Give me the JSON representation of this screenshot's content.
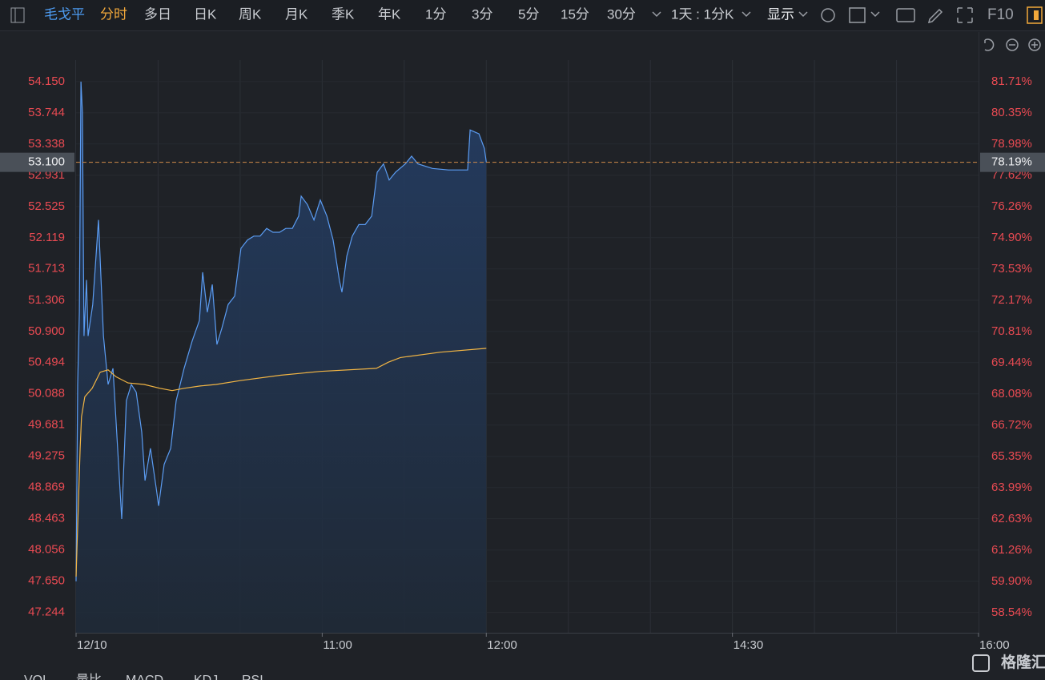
{
  "toolbar": {
    "symbol": "毛戈平",
    "items": [
      "分时",
      "多日",
      "日K",
      "周K",
      "月K",
      "季K",
      "年K",
      "1分",
      "3分",
      "5分",
      "15分",
      "30分"
    ],
    "ratio": "1天 : 1分K",
    "display": "显示",
    "f10": "F10"
  },
  "tabs": [
    "VOL",
    "量比",
    "MACD",
    "KDJ",
    "RSI"
  ],
  "logo": "格隆汇",
  "chart_data": {
    "type": "line",
    "x": [
      0,
      0.6,
      1.2,
      1.8,
      2.3,
      2.9,
      3.8,
      4.4,
      6.1,
      8.2,
      10,
      11.7,
      13.5,
      15.2,
      16.7,
      18.4,
      20.2,
      22,
      24,
      25.2,
      27.2,
      29.3,
      30.2,
      32.2,
      34.6,
      36.6,
      39.5,
      42.5,
      45.1,
      46.3,
      48,
      49.8,
      51.5,
      53.3,
      55.6,
      58,
      60.3,
      62.7,
      65,
      67.3,
      69.7,
      72,
      74.4,
      76.7,
      79.1,
      81.4,
      82.3,
      84.6,
      87,
      89.3,
      91.7,
      94,
      96.3,
      97.2,
      99,
      101,
      103.4,
      105.7,
      108.1,
      110.1,
      112.4,
      114.5,
      116.8,
      120.4,
      122.7,
      125,
      130.3,
      136.2,
      142,
      143.2,
      144.1,
      147.3,
      149.3,
      150
    ],
    "series": [
      {
        "color": "#5b9cf2",
        "values": [
          47.65,
          50.21,
          51.15,
          54.15,
          53.75,
          50.84,
          51.57,
          50.84,
          51.25,
          52.35,
          50.84,
          50.21,
          50.42,
          49.38,
          48.46,
          50.0,
          50.21,
          50.11,
          49.59,
          48.96,
          49.38,
          48.86,
          48.63,
          49.17,
          49.38,
          50.0,
          50.42,
          50.78,
          51.04,
          51.67,
          51.15,
          51.51,
          50.73,
          50.94,
          51.25,
          51.36,
          51.98,
          52.09,
          52.14,
          52.14,
          52.24,
          52.19,
          52.19,
          52.24,
          52.24,
          52.4,
          52.66,
          52.55,
          52.35,
          52.61,
          52.4,
          52.09,
          51.56,
          51.41,
          51.88,
          52.14,
          52.29,
          52.29,
          52.4,
          52.97,
          53.08,
          52.87,
          52.97,
          53.08,
          53.18,
          53.08,
          53.02,
          53.0,
          53.0,
          53.0,
          53.52,
          53.47,
          53.28,
          53.1
        ]
      },
      {
        "color": "#f2b544",
        "x": [
          0,
          1.5,
          2,
          3.2,
          5.9,
          8.8,
          11.7,
          14.6,
          19,
          24.9,
          30.7,
          35.1,
          39.5,
          45.4,
          51.2,
          60,
          74.7,
          89.3,
          109.8,
          114.2,
          118.6,
          133.3,
          150
        ],
        "values": [
          47.71,
          49.38,
          49.79,
          50.05,
          50.16,
          50.37,
          50.4,
          50.31,
          50.23,
          50.21,
          50.16,
          50.13,
          50.16,
          50.19,
          50.21,
          50.26,
          50.33,
          50.38,
          50.42,
          50.5,
          50.56,
          50.63,
          50.68
        ]
      }
    ],
    "xlim": [
      0,
      330
    ],
    "xticks": [
      {
        "value": 0,
        "label": "12/10"
      },
      {
        "value": 90,
        "label": "11:00"
      },
      {
        "value": 150,
        "label": "12:00"
      },
      {
        "value": 240,
        "label": "14:30"
      },
      {
        "value": 330,
        "label": "16:00"
      }
    ],
    "ylim": [
      46.98,
      54.43
    ],
    "yticks": [
      {
        "value": 54.15,
        "label": "54.150"
      },
      {
        "value": 53.744,
        "label": "53.744"
      },
      {
        "value": 53.338,
        "label": "53.338"
      },
      {
        "value": 52.931,
        "label": "52.931"
      },
      {
        "value": 52.525,
        "label": "52.525"
      },
      {
        "value": 52.119,
        "label": "52.119"
      },
      {
        "value": 51.713,
        "label": "51.713"
      },
      {
        "value": 51.306,
        "label": "51.306"
      },
      {
        "value": 50.9,
        "label": "50.900"
      },
      {
        "value": 50.494,
        "label": "50.494"
      },
      {
        "value": 50.088,
        "label": "50.088"
      },
      {
        "value": 49.681,
        "label": "49.681"
      },
      {
        "value": 49.275,
        "label": "49.275"
      },
      {
        "value": 48.869,
        "label": "48.869"
      },
      {
        "value": 48.463,
        "label": "48.463"
      },
      {
        "value": 48.056,
        "label": "48.056"
      },
      {
        "value": 47.65,
        "label": "47.650"
      },
      {
        "value": 47.244,
        "label": "47.244"
      }
    ],
    "y2lim": [
      57.67,
      82.65
    ],
    "y2ticks": [
      {
        "value": 81.71,
        "label": "81.71%"
      },
      {
        "value": 80.35,
        "label": "80.35%"
      },
      {
        "value": 78.98,
        "label": "78.98%"
      },
      {
        "value": 77.62,
        "label": "77.62%"
      },
      {
        "value": 76.26,
        "label": "76.26%"
      },
      {
        "value": 74.9,
        "label": "74.90%"
      },
      {
        "value": 73.53,
        "label": "73.53%"
      },
      {
        "value": 72.17,
        "label": "72.17%"
      },
      {
        "value": 70.81,
        "label": "70.81%"
      },
      {
        "value": 69.44,
        "label": "69.44%"
      },
      {
        "value": 68.08,
        "label": "68.08%"
      },
      {
        "value": 66.72,
        "label": "66.72%"
      },
      {
        "value": 65.35,
        "label": "65.35%"
      },
      {
        "value": 63.99,
        "label": "63.99%"
      },
      {
        "value": 62.63,
        "label": "62.63%"
      },
      {
        "value": 61.26,
        "label": "61.26%"
      },
      {
        "value": 59.9,
        "label": "59.90%"
      },
      {
        "value": 58.54,
        "label": "58.54%"
      }
    ],
    "last_price": {
      "value": 53.1,
      "label": "53.100"
    },
    "last_change": {
      "value": 78.19,
      "label": "78.19%"
    },
    "grid": true
  }
}
